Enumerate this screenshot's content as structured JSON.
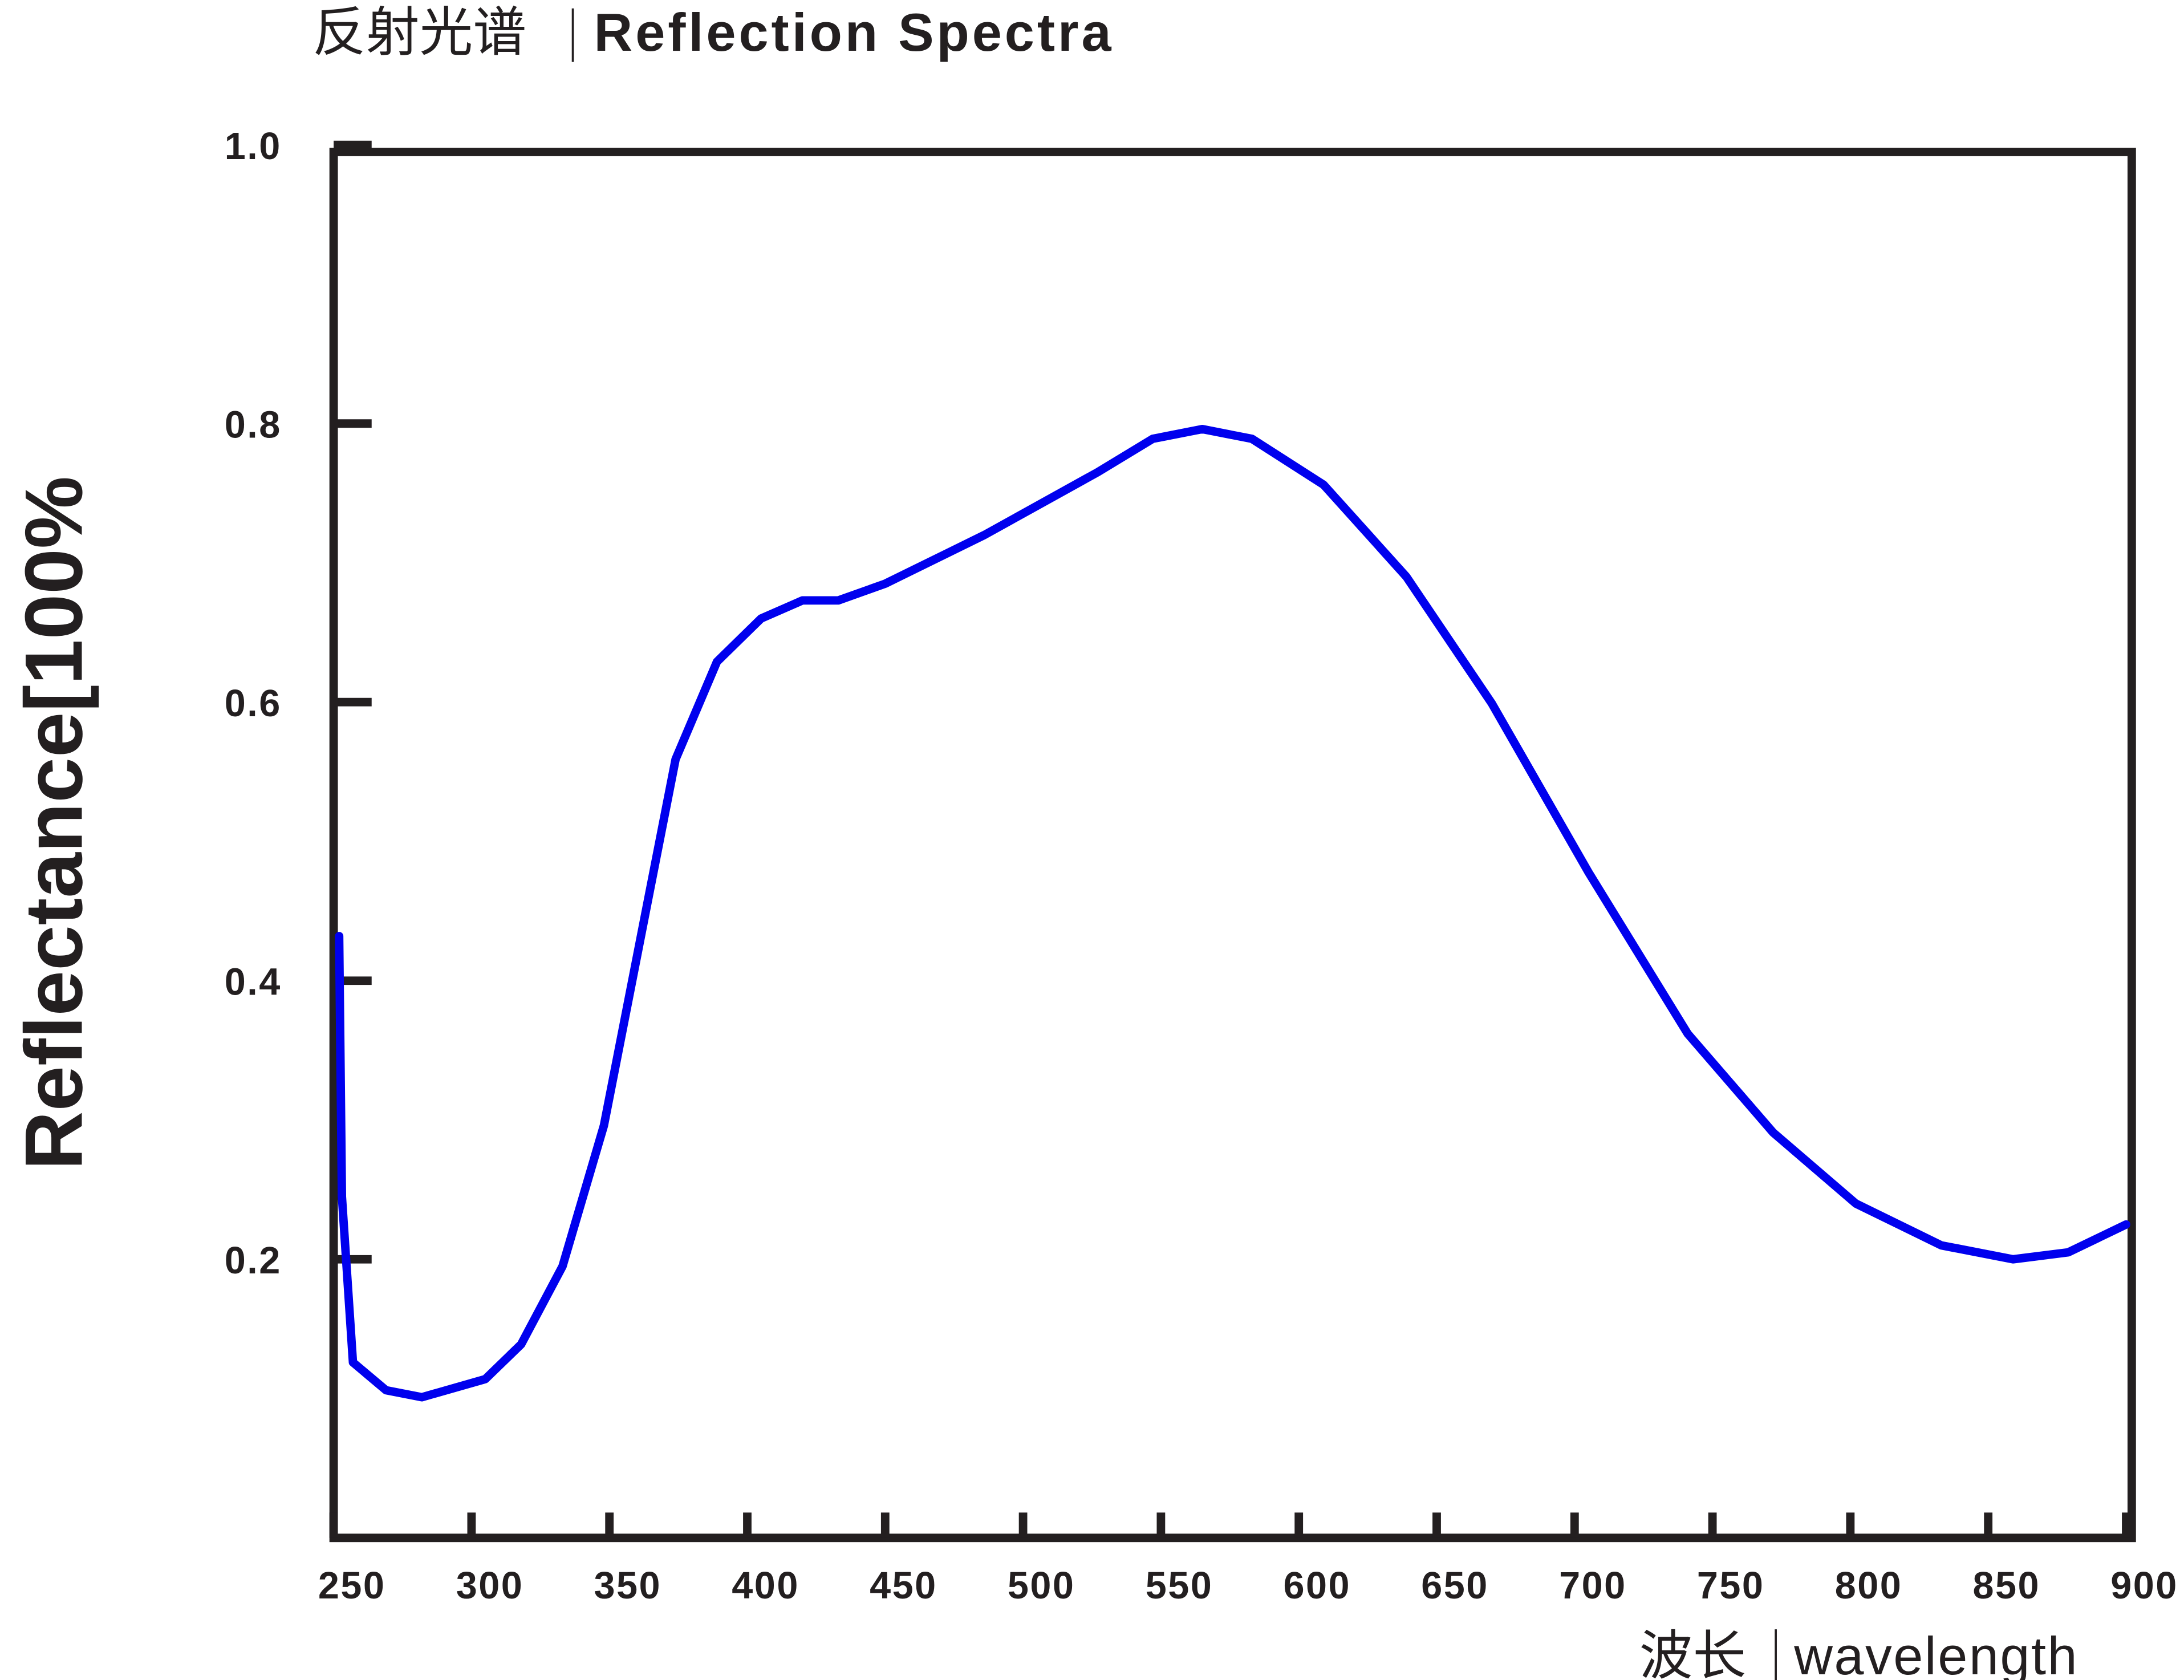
{
  "chart_data": {
    "type": "line",
    "title": "反射光谱",
    "title_en": "Reflection Spectra",
    "x_label": "波长",
    "x_label_en": "wavelength",
    "y_label": "Reflectance[100%",
    "xlim": [
      250,
      900
    ],
    "xticks": [
      250,
      300,
      350,
      400,
      450,
      500,
      550,
      600,
      650,
      700,
      750,
      800,
      850,
      900
    ],
    "ylim": [
      0,
      1
    ],
    "yticks": [
      0.2,
      0.4,
      0.6,
      0.8,
      {
        "value": 1,
        "label": "1.0"
      }
    ],
    "x": [
      252,
      253,
      257,
      269,
      282,
      305,
      318,
      333,
      348,
      364,
      374,
      389,
      405,
      420,
      433,
      450,
      486,
      527,
      547,
      565,
      583,
      609,
      639,
      670,
      705,
      741,
      772,
      802,
      833,
      859,
      879,
      900
    ],
    "series": [
      {
        "color": "#0000ee",
        "values": [
          0.432,
          0.245,
          0.126,
          0.106,
          0.101,
          0.114,
          0.139,
          0.195,
          0.296,
          0.458,
          0.559,
          0.629,
          0.66,
          0.673,
          0.673,
          0.685,
          0.72,
          0.765,
          0.789,
          0.796,
          0.789,
          0.756,
          0.69,
          0.599,
          0.478,
          0.362,
          0.291,
          0.24,
          0.21,
          0.2,
          0.205,
          0.225
        ]
      }
    ]
  }
}
